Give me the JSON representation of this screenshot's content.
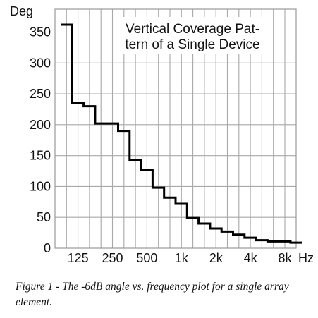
{
  "chart_data": {
    "type": "line",
    "step": true,
    "title_lines": [
      "Vertical Coverage Pat-",
      "tern of a Single Device"
    ],
    "ylabel": "Deg",
    "xlabel": "Hz",
    "ylim": [
      0,
      360
    ],
    "y_ticks": [
      0,
      50,
      100,
      150,
      200,
      250,
      300,
      350
    ],
    "x_tick_labels": [
      "125",
      "250",
      "500",
      "1k",
      "2k",
      "4k",
      "8k"
    ],
    "grid": true,
    "series": [
      {
        "values": [
          {
            "band": 0,
            "deg": 362
          },
          {
            "band": 1,
            "deg": 235
          },
          {
            "band": 2,
            "deg": 230
          },
          {
            "band": 3,
            "deg": 202
          },
          {
            "band": 4,
            "deg": 202
          },
          {
            "band": 5,
            "deg": 190
          },
          {
            "band": 6,
            "deg": 143
          },
          {
            "band": 7,
            "deg": 127
          },
          {
            "band": 8,
            "deg": 98
          },
          {
            "band": 9,
            "deg": 82
          },
          {
            "band": 10,
            "deg": 72
          },
          {
            "band": 11,
            "deg": 49
          },
          {
            "band": 12,
            "deg": 40
          },
          {
            "band": 13,
            "deg": 32
          },
          {
            "band": 14,
            "deg": 27
          },
          {
            "band": 15,
            "deg": 22
          },
          {
            "band": 16,
            "deg": 17
          },
          {
            "band": 17,
            "deg": 13
          },
          {
            "band": 18,
            "deg": 11
          },
          {
            "band": 19,
            "deg": 11
          },
          {
            "band": 20,
            "deg": 9
          }
        ]
      }
    ]
  },
  "caption": "Figure 1 - The -6dB angle vs. frequency plot for a single array element."
}
